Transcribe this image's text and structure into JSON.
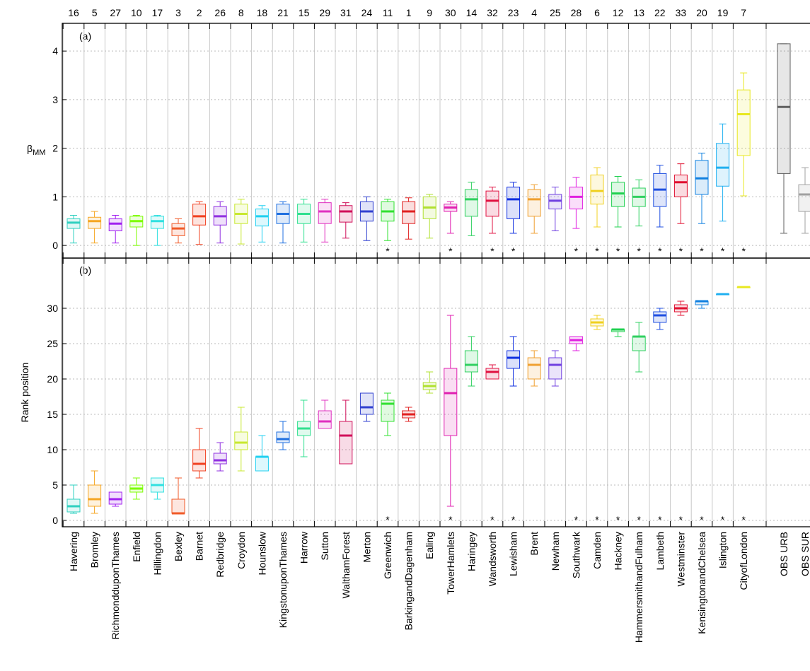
{
  "chart_data": [
    {
      "type": "box",
      "title": "(a)",
      "y_label": "β",
      "y_label_sub": "MM",
      "ylim": [
        -0.26,
        4.57
      ],
      "yticks": [
        0,
        1,
        2,
        3,
        4
      ],
      "top_labels": [
        16,
        5,
        27,
        10,
        17,
        3,
        2,
        26,
        8,
        18,
        21,
        15,
        29,
        31,
        24,
        11,
        1,
        9,
        30,
        14,
        32,
        23,
        4,
        25,
        28,
        6,
        12,
        13,
        22,
        33,
        20,
        19,
        7
      ],
      "colors": [
        "#2fd0c0",
        "#f5a623",
        "#a020f0",
        "#7cfc00",
        "#30e0e0",
        "#f05a28",
        "#f04020",
        "#9030e0",
        "#c8e830",
        "#20d0f0",
        "#2070e0",
        "#30e090",
        "#e030c0",
        "#d0105a",
        "#3040d0",
        "#30e030",
        "#e02020",
        "#b0e030",
        "#e020b0",
        "#30d060",
        "#e01040",
        "#1030e0",
        "#f0a030",
        "#7040e0",
        "#e020e0",
        "#f0d020",
        "#20d050",
        "#30d060",
        "#2050e0",
        "#e01030",
        "#1080e0",
        "#20b0f0",
        "#e8e820",
        "#606060",
        "#a0a0a0"
      ],
      "boxes": [
        [
          0.05,
          0.35,
          0.47,
          0.55,
          0.62
        ],
        [
          0.05,
          0.35,
          0.5,
          0.58,
          0.7
        ],
        [
          0.05,
          0.3,
          0.45,
          0.55,
          0.62
        ],
        [
          0.0,
          0.38,
          0.5,
          0.6,
          0.62
        ],
        [
          0.0,
          0.35,
          0.5,
          0.6,
          0.62
        ],
        [
          0.05,
          0.2,
          0.35,
          0.45,
          0.55
        ],
        [
          0.02,
          0.42,
          0.6,
          0.85,
          0.9
        ],
        [
          0.05,
          0.42,
          0.6,
          0.8,
          0.9
        ],
        [
          0.03,
          0.45,
          0.65,
          0.85,
          0.95
        ],
        [
          0.07,
          0.4,
          0.6,
          0.75,
          0.82
        ],
        [
          0.05,
          0.45,
          0.65,
          0.85,
          0.9
        ],
        [
          0.07,
          0.45,
          0.65,
          0.85,
          0.95
        ],
        [
          0.07,
          0.45,
          0.7,
          0.88,
          0.95
        ],
        [
          0.15,
          0.48,
          0.7,
          0.82,
          0.88
        ],
        [
          0.1,
          0.5,
          0.7,
          0.9,
          1.0
        ],
        [
          0.1,
          0.5,
          0.7,
          0.9,
          0.95
        ],
        [
          0.13,
          0.45,
          0.7,
          0.9,
          0.98
        ],
        [
          0.15,
          0.55,
          0.78,
          1.0,
          1.05
        ],
        [
          0.25,
          0.7,
          0.78,
          0.85,
          0.9
        ],
        [
          0.2,
          0.6,
          0.95,
          1.15,
          1.3
        ],
        [
          0.25,
          0.6,
          0.92,
          1.12,
          1.2
        ],
        [
          0.25,
          0.55,
          0.95,
          1.2,
          1.3
        ],
        [
          0.25,
          0.6,
          0.95,
          1.15,
          1.25
        ],
        [
          0.3,
          0.75,
          0.92,
          1.05,
          1.2
        ],
        [
          0.35,
          0.75,
          1.0,
          1.2,
          1.4
        ],
        [
          0.38,
          0.85,
          1.12,
          1.45,
          1.6
        ],
        [
          0.38,
          0.8,
          1.07,
          1.3,
          1.42
        ],
        [
          0.4,
          0.8,
          1.0,
          1.18,
          1.35
        ],
        [
          0.38,
          0.8,
          1.15,
          1.48,
          1.65
        ],
        [
          0.45,
          1.0,
          1.3,
          1.45,
          1.68
        ],
        [
          0.45,
          1.05,
          1.38,
          1.75,
          1.9
        ],
        [
          0.5,
          1.22,
          1.6,
          2.1,
          2.5
        ],
        [
          1.02,
          1.85,
          2.7,
          3.2,
          3.55
        ],
        [
          0.25,
          1.48,
          2.85,
          4.15,
          4.15
        ],
        [
          0.25,
          0.7,
          1.05,
          1.25,
          1.6
        ]
      ]
    },
    {
      "type": "box",
      "title": "(b)",
      "y_label": "Rank position",
      "ylim": [
        -0.9,
        37.1
      ],
      "yticks": [
        0,
        5,
        10,
        15,
        20,
        25,
        30
      ],
      "categories": [
        "Havering",
        "Bromley",
        "RichmondduponThames",
        "Enfield",
        "Hillingdon",
        "Bexley",
        "Barnet",
        "Redbridge",
        "Croydon",
        "Hounslow",
        "KingstonuponThames",
        "Harrow",
        "Sutton",
        "WalthamForest",
        "Merton",
        "Greenwich",
        "BarkingandDagenham",
        "Ealing",
        "TowerHamlets",
        "Haringey",
        "Wandsworth",
        "Lewisham",
        "Brent",
        "Newham",
        "Southwark",
        "Camden",
        "Hackney",
        "HammersmithandFulham",
        "Lambeth",
        "Westminster",
        "KensingtonandChelsea",
        "Islington",
        "CityofLondon",
        "OBS URB",
        "OBS SUR"
      ],
      "markers": [
        null,
        null,
        null,
        null,
        null,
        null,
        null,
        null,
        null,
        null,
        null,
        null,
        null,
        null,
        null,
        "*",
        null,
        null,
        "*",
        null,
        "*",
        "*",
        null,
        null,
        "*",
        "*",
        "*",
        "*",
        "*",
        "*",
        "*",
        "*",
        "*"
      ],
      "boxes": [
        [
          1,
          1.2,
          2,
          3,
          5
        ],
        [
          1,
          2,
          3,
          5,
          7
        ],
        [
          2,
          2.3,
          3,
          4,
          4
        ],
        [
          3,
          4,
          4.5,
          5,
          6
        ],
        [
          3,
          4,
          5,
          6,
          6
        ],
        [
          1,
          1,
          1,
          3,
          6
        ],
        [
          6,
          7,
          8,
          10,
          13
        ],
        [
          7,
          8,
          8.5,
          9.5,
          11
        ],
        [
          7,
          10,
          11,
          12.5,
          16
        ],
        [
          7,
          7,
          9,
          9,
          12
        ],
        [
          10,
          11,
          11.5,
          12.5,
          14
        ],
        [
          9,
          12,
          13,
          14,
          17
        ],
        [
          13,
          13,
          14,
          15.5,
          17
        ],
        [
          8,
          8,
          12,
          14,
          17
        ],
        [
          14,
          15,
          16,
          18,
          18
        ],
        [
          12,
          14,
          16.5,
          17,
          18
        ],
        [
          14,
          14.5,
          15,
          15.5,
          16
        ],
        [
          18,
          18.5,
          19,
          19.5,
          21
        ],
        [
          2,
          12,
          18,
          21.5,
          29
        ],
        [
          19,
          21,
          22,
          24,
          26
        ],
        [
          20,
          20,
          21,
          21.5,
          22
        ],
        [
          19,
          21.5,
          23,
          24,
          26
        ],
        [
          19,
          20,
          22,
          23,
          24
        ],
        [
          19,
          20,
          22,
          23,
          24
        ],
        [
          24,
          25,
          25.5,
          26,
          26
        ],
        [
          27,
          27.5,
          28,
          28.5,
          29
        ],
        [
          26,
          26.7,
          27,
          27,
          27
        ],
        [
          21,
          24,
          26,
          26,
          28
        ],
        [
          27,
          28,
          29,
          29.5,
          30
        ],
        [
          29,
          29.5,
          30,
          30.5,
          31
        ],
        [
          30,
          30.5,
          31,
          31,
          31
        ],
        [
          32,
          32,
          32,
          32,
          32
        ],
        [
          33,
          33,
          33,
          33,
          33
        ]
      ]
    }
  ]
}
